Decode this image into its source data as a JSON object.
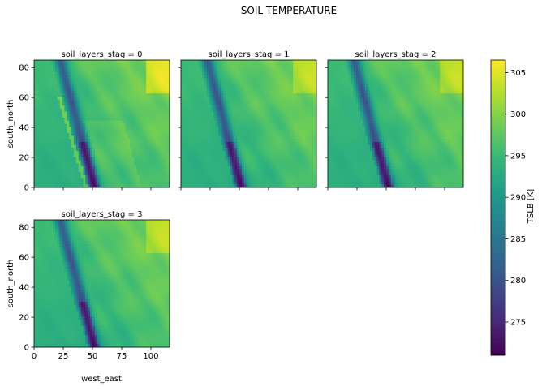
{
  "chart_data": {
    "type": "heatmap",
    "title": "SOIL TEMPERATURE",
    "xlabel": "west_east",
    "ylabel": "south_north",
    "colorbar_label": "TSLB [K]",
    "colormap": "viridis",
    "xlim": [
      0,
      116
    ],
    "ylim": [
      0,
      85
    ],
    "x_ticks": [
      "0",
      "25",
      "50",
      "75",
      "100"
    ],
    "y_ticks": [
      "0",
      "20",
      "40",
      "60",
      "80"
    ],
    "color_range": [
      271,
      306.5
    ],
    "colorbar_ticks": [
      "275",
      "280",
      "285",
      "290",
      "295",
      "300",
      "305"
    ],
    "panels": [
      {
        "title": "soil_layers_stag = 0",
        "layer": 0
      },
      {
        "title": "soil_layers_stag = 1",
        "layer": 1
      },
      {
        "title": "soil_layers_stag = 2",
        "layer": 2
      },
      {
        "title": "soil_layers_stag = 3",
        "layer": 3
      }
    ]
  }
}
